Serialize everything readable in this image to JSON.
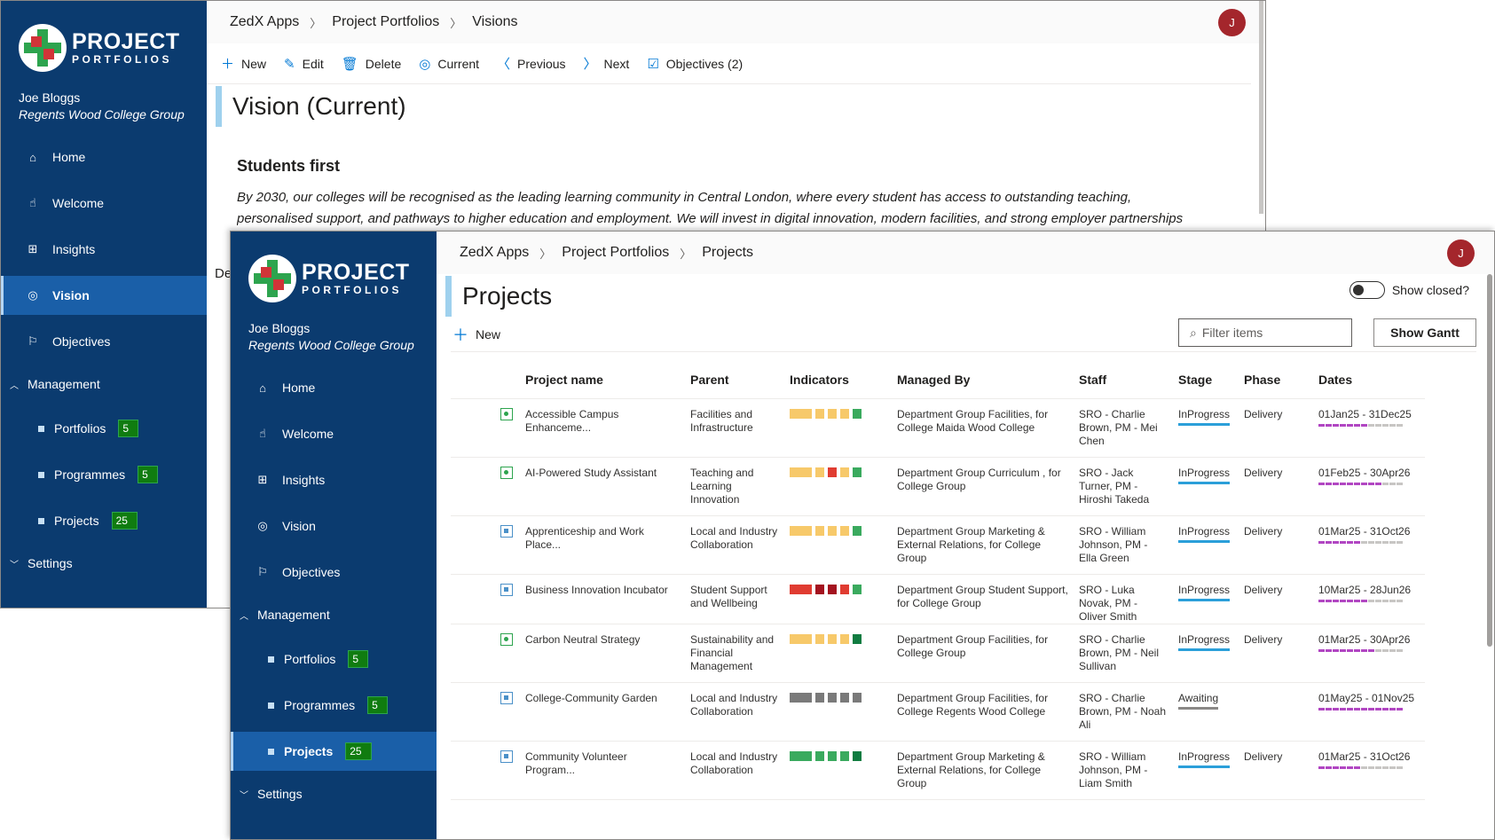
{
  "brand": {
    "logo_big": "PROJECT",
    "logo_small": "PORTFOLIOS"
  },
  "user": {
    "name": "Joe Bloggs",
    "org": "Regents Wood College Group",
    "avatar_initial": "J"
  },
  "nav": {
    "items": [
      {
        "label": "Home",
        "icon": "home-icon",
        "glyph": "⌂"
      },
      {
        "label": "Welcome",
        "icon": "welcome-icon",
        "glyph": "☝"
      },
      {
        "label": "Insights",
        "icon": "insights-icon",
        "glyph": "⊞"
      },
      {
        "label": "Vision",
        "icon": "vision-icon",
        "glyph": "◎"
      },
      {
        "label": "Objectives",
        "icon": "flag-icon",
        "glyph": "⚐"
      }
    ],
    "management_label": "Management",
    "sub_items": [
      {
        "label": "Portfolios",
        "count": "5"
      },
      {
        "label": "Programmes",
        "count": "5"
      },
      {
        "label": "Projects",
        "count": "25"
      }
    ],
    "settings_label": "Settings"
  },
  "back": {
    "breadcrumb": [
      "ZedX Apps",
      "Project Portfolios",
      "Visions"
    ],
    "toolbar": {
      "new": "New",
      "edit": "Edit",
      "delete": "Delete",
      "current": "Current",
      "previous": "Previous",
      "next": "Next",
      "objectives": "Objectives (2)"
    },
    "title": "Vision (Current)",
    "heading": "Students first",
    "text_line1": "By 2030, our colleges will be recognised as the leading learning community in Central London, where every student has access to outstanding teaching,",
    "text_line2": "personalised support, and pathways to higher education and employment. We will invest in digital innovation, modern facilities, and strong employer partnerships",
    "partial_label": "De"
  },
  "front": {
    "breadcrumb": [
      "ZedX Apps",
      "Project Portfolios",
      "Projects"
    ],
    "title": "Projects",
    "show_closed": "Show closed?",
    "new": "New",
    "filter_placeholder": "Filter items",
    "show_gantt": "Show Gantt",
    "columns": [
      "Project name",
      "Parent",
      "Indicators",
      "Managed By",
      "Staff",
      "Stage",
      "Phase",
      "Dates"
    ],
    "colors": {
      "amber": "#f7c96a",
      "red": "#e03c31",
      "darkred": "#a4131f",
      "green": "#3aaa5e",
      "darkgreen": "#107c41",
      "grey": "#7a7a7a",
      "stage": "#2b9fd9",
      "dates_on": "#b146c2",
      "dates_off": "#c8c6c4"
    },
    "rows": [
      {
        "status": "ok",
        "name": "Accessible Campus Enhanceme...",
        "parent": "Facilities and Infrastructure",
        "indicators": [
          "amber",
          "amber",
          "amber",
          "amber",
          "green"
        ],
        "managed": "Department Group Facilities, for College Maida Wood College",
        "staff": "SRO - Charlie Brown, PM - Mei Chen",
        "stage": "InProgress",
        "phase": "Delivery",
        "dates": "01Jan25 - 31Dec25",
        "progress": 0.6
      },
      {
        "status": "ok",
        "name": "AI-Powered Study Assistant",
        "parent": "Teaching and Learning Innovation",
        "indicators": [
          "amber",
          "amber",
          "red",
          "amber",
          "green"
        ],
        "managed": "Department Group Curriculum , for College Group",
        "staff": "SRO - Jack Turner, PM - Hiroshi Takeda",
        "stage": "InProgress",
        "phase": "Delivery",
        "dates": "01Feb25 - 30Apr26",
        "progress": 0.75
      },
      {
        "status": "sq",
        "name": "Apprenticeship and Work Place...",
        "parent": "Local and Industry Collaboration",
        "indicators": [
          "amber",
          "amber",
          "amber",
          "amber",
          "green"
        ],
        "managed": "Department Group Marketing & External Relations, for College Group",
        "staff": "SRO - William Johnson, PM - Ella Green",
        "stage": "InProgress",
        "phase": "Delivery",
        "dates": "01Mar25 - 31Oct26",
        "progress": 0.5
      },
      {
        "status": "sq",
        "name": "Business Innovation Incubator",
        "parent": "Student Support and Wellbeing",
        "indicators": [
          "red",
          "darkred",
          "darkred",
          "red",
          "green"
        ],
        "managed": "Department Group Student Support, for College Group",
        "staff": "SRO - Luka Novak, PM - Oliver Smith",
        "stage": "InProgress",
        "phase": "Delivery",
        "dates": "10Mar25 - 28Jun26",
        "progress": 0.6
      },
      {
        "status": "ok",
        "name": "Carbon Neutral Strategy",
        "parent": "Sustainability and Financial Management",
        "indicators": [
          "amber",
          "amber",
          "amber",
          "amber",
          "darkgreen"
        ],
        "managed": "Department Group Facilities, for College Group",
        "staff": "SRO - Charlie Brown, PM - Neil Sullivan",
        "stage": "InProgress",
        "phase": "Delivery",
        "dates": "01Mar25 - 30Apr26",
        "progress": 0.7
      },
      {
        "status": "sq",
        "name": "College-Community Garden",
        "parent": "Local and Industry Collaboration",
        "indicators": [
          "grey",
          "grey",
          "grey",
          "grey",
          "grey"
        ],
        "managed": "Department Group Facilities, for College Regents Wood College",
        "staff": "SRO - Charlie Brown, PM - Noah Ali",
        "stage": "Awaiting",
        "phase": "",
        "dates": "01May25 - 01Nov25",
        "progress": 1.0
      },
      {
        "status": "sq",
        "name": "Community Volunteer Program...",
        "parent": "Local and Industry Collaboration",
        "indicators": [
          "green",
          "green",
          "green",
          "green",
          "darkgreen"
        ],
        "managed": "Department Group Marketing & External Relations, for College Group",
        "staff": "SRO - William Johnson, PM - Liam Smith",
        "stage": "InProgress",
        "phase": "Delivery",
        "dates": "01Mar25 - 31Oct26",
        "progress": 0.5
      }
    ]
  }
}
